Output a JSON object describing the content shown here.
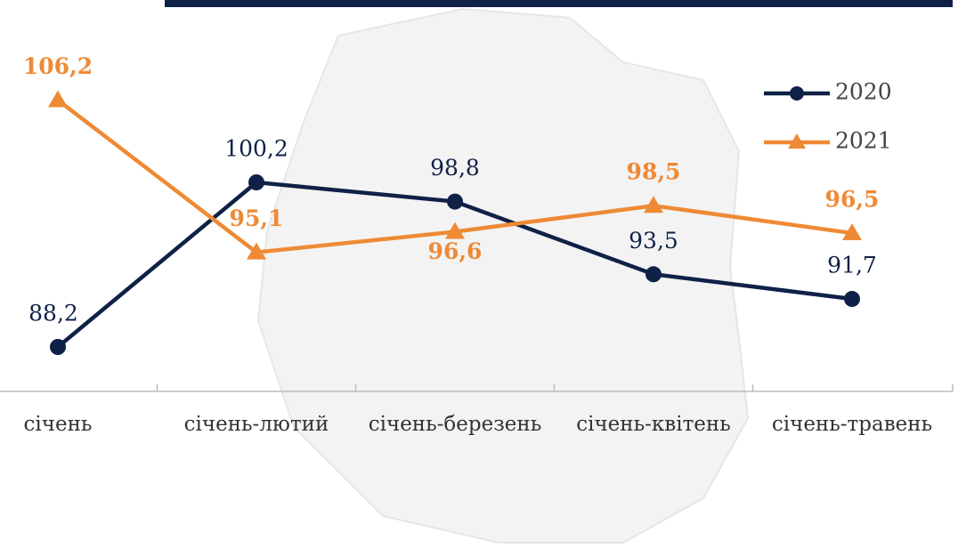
{
  "chart_data": {
    "type": "line",
    "categories": [
      "січень",
      "січень-лютий",
      "січень-березень",
      "січень-квітень",
      "січень-травень"
    ],
    "series": [
      {
        "name": "2020",
        "color": "#0f2147",
        "values": [
          88.2,
          100.2,
          98.8,
          93.5,
          91.7
        ],
        "value_labels": [
          "88,2",
          "100,2",
          "98,8",
          "93,5",
          "91,7"
        ]
      },
      {
        "name": "2021",
        "color": "#ee8a35",
        "values": [
          106.2,
          95.1,
          96.6,
          98.5,
          96.5
        ],
        "value_labels": [
          "106,2",
          "95,1",
          "96,6",
          "98,5",
          "96,5"
        ]
      }
    ],
    "legend": "top-right"
  }
}
